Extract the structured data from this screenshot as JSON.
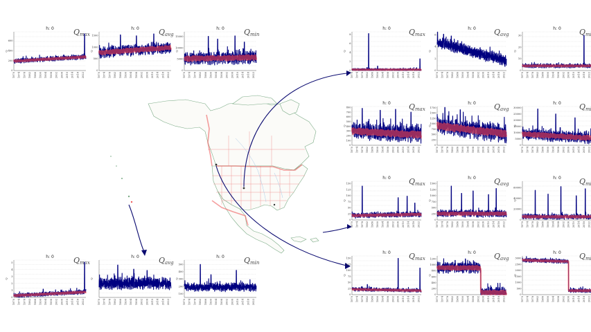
{
  "chart_data": {
    "type": "line",
    "x_tick_labels": [
      "1970",
      "1974",
      "1978",
      "1982",
      "1986",
      "1990",
      "1994",
      "1998",
      "2002",
      "2006",
      "2010",
      "2014",
      "2018",
      "2022"
    ],
    "x_range": [
      1970,
      2024
    ],
    "ylabel": "Q",
    "panel_title": "h: 0",
    "colors": {
      "observed": "#000080",
      "simulated": "#ff4a4a"
    },
    "groups": [
      {
        "id": "group-top-left",
        "panels": [
          {
            "id": "tl-max",
            "metric": "max",
            "yticks": [
              0,
              200,
              400,
              600
            ],
            "ylim": [
              0,
              780
            ],
            "base": 190,
            "trend": 1.6,
            "noise": 45,
            "spikes": [
              [
                2023,
                740
              ]
            ],
            "sim": true,
            "seed": 11
          },
          {
            "id": "tl-avg",
            "metric": "avg",
            "yticks": [
              0,
              500,
              1000,
              1500
            ],
            "ylim": [
              0,
              1650
            ],
            "base": 760,
            "trend": 4,
            "noise": 220,
            "spikes": [
              [
                1986,
                1520
              ],
              [
                1998,
                1480
              ],
              [
                2011,
                1560
              ]
            ],
            "sim": true,
            "seed": 12
          },
          {
            "id": "tl-min",
            "metric": "min",
            "yticks": [
              0,
              5000,
              10000,
              15000
            ],
            "ylim": [
              0,
              17000
            ],
            "base": 5200,
            "trend": 10,
            "noise": 2600,
            "spikes": [
              [
                1988,
                15000
              ],
              [
                1995,
                13800
              ],
              [
                2008,
                15200
              ],
              [
                2015,
                12500
              ]
            ],
            "sim": true,
            "seed": 13
          }
        ]
      },
      {
        "id": "group-bottom-left",
        "panels": [
          {
            "id": "bl-max",
            "metric": "max",
            "yticks": [
              0,
              1,
              2,
              3,
              4,
              5
            ],
            "ylim": [
              0,
              5.4
            ],
            "base": 0.25,
            "trend": 0.01,
            "noise": 0.3,
            "spikes": [
              [
                1992,
                1.2
              ],
              [
                2023,
                5.1
              ]
            ],
            "sim": true,
            "seed": 21
          },
          {
            "id": "bl-avg",
            "metric": "avg",
            "yticks": [],
            "ylim": [
              0,
              900
            ],
            "base": 330,
            "trend": 0,
            "noise": 130,
            "spikes": [
              [
                1984,
                780
              ],
              [
                1996,
                680
              ],
              [
                2006,
                650
              ]
            ],
            "sim": false,
            "seed": 22
          },
          {
            "id": "bl-min",
            "metric": "min",
            "yticks": [
              100,
              200,
              300,
              400,
              500
            ],
            "ylim": [
              50,
              560
            ],
            "base": 190,
            "trend": 0,
            "noise": 55,
            "spikes": [
              [
                1982,
                500
              ],
              [
                1990,
                360
              ],
              [
                2009,
                420
              ]
            ],
            "sim": false,
            "seed": 23
          }
        ]
      },
      {
        "id": "group-right",
        "panels": [
          {
            "id": "r1-max",
            "metric": "max",
            "yticks": [
              0,
              2,
              4,
              6,
              8
            ],
            "ylim": [
              0,
              8.6
            ],
            "base": 0.2,
            "trend": 0,
            "noise": 0.25,
            "spikes": [
              [
                1983,
                8.2
              ],
              [
                2023,
                2.6
              ],
              [
                1990,
                1.0
              ]
            ],
            "sim": true,
            "seed": 31
          },
          {
            "id": "r1-avg",
            "metric": "avg",
            "yticks": [
              0,
              2,
              4,
              6
            ],
            "ylim": [
              0,
              6.5
            ],
            "base": 4.8,
            "trend": -0.06,
            "noise": 0.9,
            "spikes": [
              [
                1975,
                6.1
              ],
              [
                1981,
                5.8
              ]
            ],
            "sim": false,
            "seed": 32
          },
          {
            "id": "r1-min",
            "metric": "min",
            "yticks": [
              0,
              10,
              20,
              30
            ],
            "ylim": [
              0,
              33
            ],
            "base": 4,
            "trend": 0,
            "noise": 1.6,
            "spikes": [
              [
                2018,
                30
              ]
            ],
            "sim": true,
            "seed": 33
          },
          {
            "id": "r2-max",
            "metric": "max",
            "yticks": [
              0,
              100,
              200,
              300,
              400,
              500,
              600,
              700,
              800
            ],
            "ylim": [
              0,
              820
            ],
            "base": 300,
            "trend": -1.5,
            "noise": 160,
            "spikes": [
              [
                1978,
                780
              ],
              [
                1992,
                740
              ],
              [
                2004,
                760
              ],
              [
                2016,
                700
              ]
            ],
            "sim": true,
            "seed": 41
          },
          {
            "id": "r2-avg",
            "metric": "avg",
            "yticks": [
              0,
              250,
              500,
              750,
              1000,
              1250,
              1500,
              1750
            ],
            "ylim": [
              0,
              1800
            ],
            "base": 900,
            "trend": -7,
            "noise": 380,
            "spikes": [
              [
                1976,
                1760
              ],
              [
                1988,
                1650
              ]
            ],
            "sim": true,
            "seed": 42
          },
          {
            "id": "r2-min",
            "metric": "min",
            "yticks": [
              0,
              5000,
              10000,
              15000,
              20000,
              25000,
              30000
            ],
            "ylim": [
              0,
              31000
            ],
            "base": 9000,
            "trend": -60,
            "noise": 4200,
            "spikes": [
              [
                1982,
                29000
              ],
              [
                1996,
                25000
              ],
              [
                2011,
                22000
              ]
            ],
            "sim": true,
            "seed": 43
          },
          {
            "id": "r3-max",
            "metric": "max",
            "yticks": [
              0,
              25,
              50,
              75,
              100,
              125,
              150
            ],
            "ylim": [
              0,
              160
            ],
            "base": 18,
            "trend": 0.1,
            "noise": 10,
            "spikes": [
              [
                1978,
                140
              ],
              [
                2006,
                92
              ],
              [
                2013,
                98
              ],
              [
                2019,
                70
              ]
            ],
            "sim": true,
            "seed": 51
          },
          {
            "id": "r3-avg",
            "metric": "avg",
            "yticks": [
              0,
              250,
              500,
              750,
              1000,
              1250,
              1500
            ],
            "ylim": [
              0,
              1600
            ],
            "base": 260,
            "trend": 0,
            "noise": 140,
            "spikes": [
              [
                1981,
                1400
              ],
              [
                1989,
                1100
              ],
              [
                1998,
                1200
              ],
              [
                2010,
                1050
              ],
              [
                2016,
                1300
              ]
            ],
            "sim": true,
            "seed": 52
          },
          {
            "id": "r3-min",
            "metric": "min",
            "yticks": [
              0,
              20000,
              40000,
              60000
            ],
            "ylim": [
              0,
              72000
            ],
            "base": 6000,
            "trend": 0,
            "noise": 4500,
            "spikes": [
              [
                1980,
                55000
              ],
              [
                1990,
                48000
              ],
              [
                2000,
                62000
              ],
              [
                2012,
                45000
              ],
              [
                2019,
                58000
              ]
            ],
            "sim": true,
            "seed": 53
          },
          {
            "id": "r4-max",
            "metric": "max",
            "yticks": [
              0,
              25,
              50,
              75,
              100,
              125,
              150
            ],
            "ylim": [
              0,
              160
            ],
            "base": 22,
            "trend": -0.1,
            "noise": 7,
            "spikes": [
              [
                2006,
                150
              ],
              [
                2023,
                110
              ],
              [
                1982,
                42
              ]
            ],
            "sim": true,
            "seed": 61
          },
          {
            "id": "r4-avg",
            "metric": "avg",
            "yticks": [
              0,
              200,
              400,
              600,
              800,
              1000,
              1200
            ],
            "ylim": [
              0,
              1300
            ],
            "base": 900,
            "trend": 0,
            "noise": 170,
            "spikes": [
              [
                1984,
                1150
              ],
              [
                1992,
                1200
              ],
              [
                1999,
                1100
              ]
            ],
            "sim": true,
            "step": [
              2004,
              70
            ],
            "seed": 62
          },
          {
            "id": "r4-min",
            "metric": "min",
            "yticks": [
              0,
              500,
              1000,
              1500,
              2000,
              2500,
              3000
            ],
            "ylim": [
              0,
              3200
            ],
            "base": 2850,
            "trend": -3,
            "noise": 160,
            "spikes": [],
            "sim": true,
            "step": [
              2006,
              330
            ],
            "seed": 63
          }
        ]
      }
    ]
  }
}
